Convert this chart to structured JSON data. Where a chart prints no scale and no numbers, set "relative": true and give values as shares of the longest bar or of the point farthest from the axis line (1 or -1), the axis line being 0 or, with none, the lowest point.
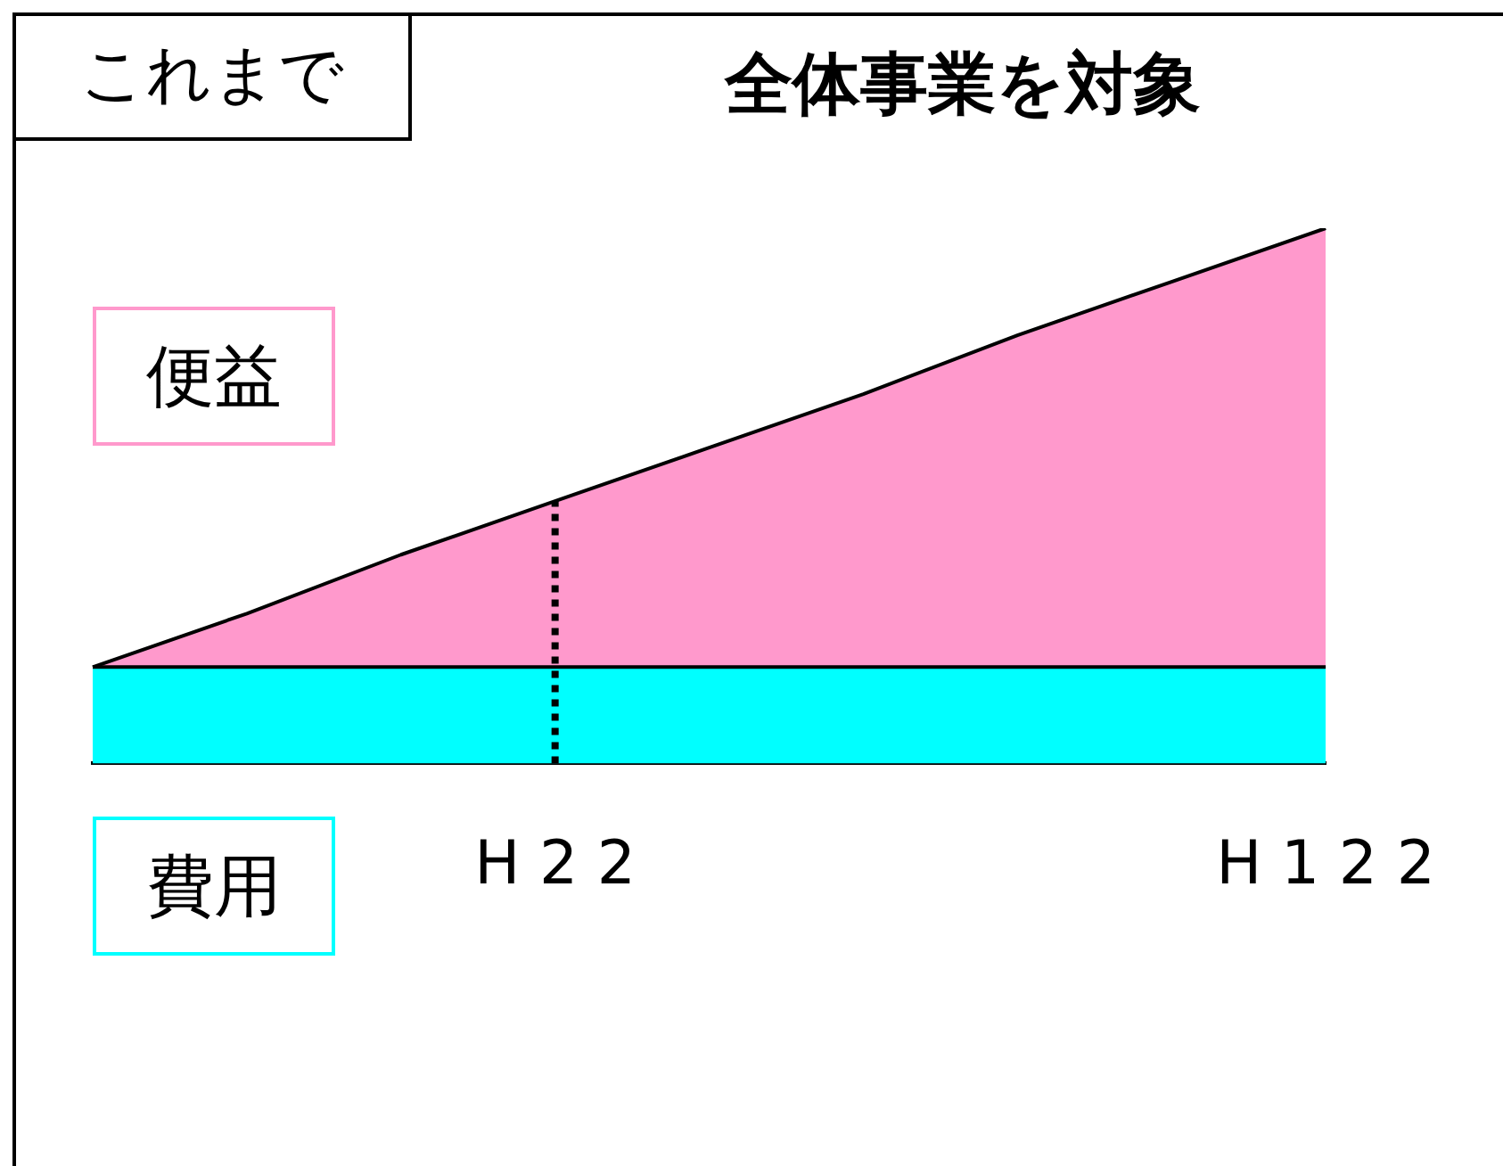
{
  "chart_data": {
    "type": "area",
    "title": "全体事業を対象",
    "annotations": [
      "これまで"
    ],
    "relative": true,
    "marker": "none",
    "grid": false,
    "categories": [
      null,
      null,
      null,
      "H 2 2",
      null,
      null,
      null,
      null,
      "H 1 2 2"
    ],
    "series": [
      {
        "name": "費用",
        "color": "#00ffff",
        "values": [
          0.18,
          0.18,
          0.18,
          0.18,
          0.18,
          0.18,
          0.18,
          0.18,
          0.18
        ]
      },
      {
        "name": "便益",
        "color": "#ff99cc",
        "values": [
          0.18,
          0.28,
          0.39,
          0.49,
          0.59,
          0.69,
          0.8,
          0.9,
          1
        ]
      }
    ],
    "ref_lines": [
      {
        "axis": "x",
        "value": "H 2 2",
        "color": "#000000",
        "line_style": "dotted"
      }
    ]
  }
}
